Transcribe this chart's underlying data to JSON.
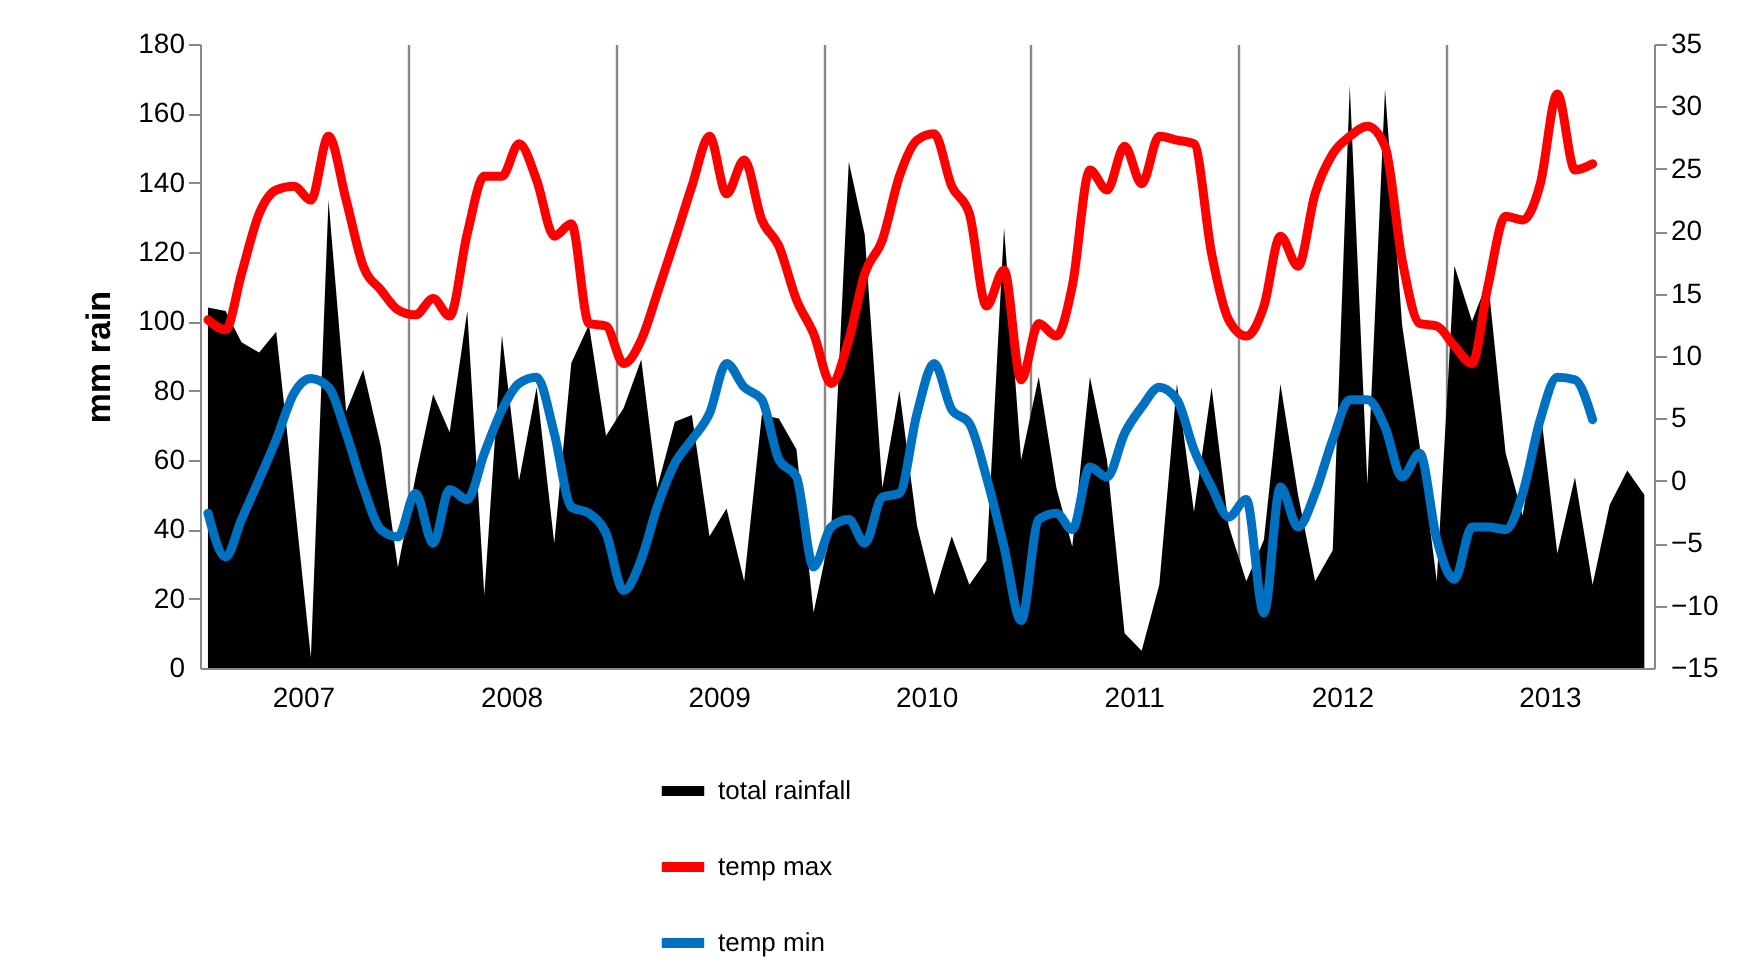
{
  "chart_data": {
    "type": "area",
    "ylabel": "mm rain",
    "legend": "bottom",
    "grid": "x",
    "x": [
      "2007-01-15",
      "2007-02-15",
      "2007-03-15",
      "2007-04-15",
      "2007-05-15",
      "2007-06-15",
      "2007-07-15",
      "2007-08-15",
      "2007-09-15",
      "2007-10-15",
      "2007-11-15",
      "2007-12-15",
      "2008-01-15",
      "2008-02-15",
      "2008-03-15",
      "2008-04-15",
      "2008-05-15",
      "2008-06-15",
      "2008-07-15",
      "2008-08-15",
      "2008-09-15",
      "2008-10-15",
      "2008-11-15",
      "2008-12-15",
      "2009-01-15",
      "2009-02-15",
      "2009-03-15",
      "2009-04-15",
      "2009-05-15",
      "2009-06-15",
      "2009-07-15",
      "2009-08-15",
      "2009-09-15",
      "2009-10-15",
      "2009-11-15",
      "2009-12-15",
      "2010-01-15",
      "2010-02-15",
      "2010-03-15",
      "2010-04-15",
      "2010-05-15",
      "2010-06-15",
      "2010-07-15",
      "2010-08-15",
      "2010-09-15",
      "2010-10-15",
      "2010-11-15",
      "2010-12-15",
      "2011-01-15",
      "2011-02-15",
      "2011-03-15",
      "2011-04-15",
      "2011-05-15",
      "2011-06-15",
      "2011-07-15",
      "2011-08-15",
      "2011-09-15",
      "2011-10-15",
      "2011-11-15",
      "2011-12-15",
      "2012-01-15",
      "2012-02-15",
      "2012-03-15",
      "2012-04-15",
      "2012-05-15",
      "2012-06-15",
      "2012-07-15",
      "2012-08-15",
      "2012-09-15",
      "2012-10-15",
      "2012-11-15",
      "2012-12-15",
      "2013-01-15",
      "2013-02-15",
      "2013-03-15",
      "2013-04-15",
      "2013-05-15",
      "2013-06-15",
      "2013-07-15",
      "2013-08-15",
      "2013-09-15",
      "2013-10-15",
      "2013-11-15",
      "2013-12-15"
    ],
    "xlim": [
      "2007-01-01",
      "2014-01-01"
    ],
    "xticks": [
      {
        "value": "2007-07-01",
        "label": "2007"
      },
      {
        "value": "2008-01-01",
        "label": null
      },
      {
        "value": "2008-07-01",
        "label": "2008"
      },
      {
        "value": "2009-01-01",
        "label": null
      },
      {
        "value": "2009-07-01",
        "label": "2009"
      },
      {
        "value": "2010-01-01",
        "label": null
      },
      {
        "value": "2010-07-01",
        "label": "2010"
      },
      {
        "value": "2011-01-01",
        "label": null
      },
      {
        "value": "2011-07-01",
        "label": "2011"
      },
      {
        "value": "2012-01-01",
        "label": null
      },
      {
        "value": "2012-07-01",
        "label": "2012"
      },
      {
        "value": "2013-01-01",
        "label": null
      },
      {
        "value": "2013-07-01",
        "label": "2013"
      }
    ],
    "ylim": [
      0,
      180
    ],
    "yticks": [
      0,
      20,
      40,
      60,
      80,
      100,
      120,
      140,
      160,
      180
    ],
    "y2lim": [
      -15,
      35
    ],
    "y2ticks": [
      -15,
      -10,
      -5,
      0,
      5,
      10,
      15,
      20,
      25,
      30,
      35
    ],
    "series": [
      {
        "name": "total rainfall",
        "type": "area",
        "color": "#000000",
        "values": [
          104,
          103,
          94,
          91,
          97,
          50,
          3,
          135,
          74,
          86,
          64,
          29,
          55,
          79,
          68,
          103,
          21,
          96,
          54,
          81,
          36,
          88,
          99,
          67,
          75,
          89,
          52,
          71,
          73,
          38,
          46,
          25,
          73,
          72,
          63,
          16,
          40,
          146,
          125,
          52,
          80,
          41,
          21,
          38,
          24,
          31,
          127,
          60,
          84,
          52,
          35,
          84,
          60,
          10,
          5,
          24,
          82,
          45,
          81,
          41,
          25,
          37,
          82,
          50,
          25,
          34,
          168,
          53,
          167,
          99,
          64,
          25,
          116,
          100,
          112,
          62,
          44,
          75,
          33,
          55,
          24,
          47,
          57,
          50
        ]
      },
      {
        "name": "temp max",
        "type": "line",
        "axis": "y2",
        "color": "#ff0000",
        "values": [
          12.9,
          12.1,
          16.6,
          21.4,
          23.3,
          23.6,
          22.5,
          27.6,
          22.5,
          17.2,
          15.3,
          13.7,
          13.3,
          14.6,
          13.2,
          19.8,
          24.4,
          24.4,
          27.0,
          24.1,
          19.6,
          20.6,
          12.6,
          12.4,
          9.4,
          11.3,
          15.0,
          19.3,
          23.6,
          27.6,
          23.0,
          25.7,
          20.9,
          18.8,
          14.5,
          11.8,
          7.8,
          11.3,
          16.6,
          19.3,
          24.4,
          27.3,
          27.8,
          23.6,
          21.4,
          14.0,
          16.9,
          8.1,
          12.6,
          11.6,
          15.6,
          24.9,
          23.3,
          26.8,
          23.8,
          27.6,
          27.3,
          27.0,
          18.2,
          12.9,
          11.6,
          14.0,
          19.6,
          17.2,
          23.0,
          26.2,
          27.6,
          28.4,
          26.8,
          17.7,
          12.6,
          12.4,
          10.8,
          9.4,
          15.6,
          21.2,
          20.9,
          23.8,
          31.0,
          24.9,
          25.4,
          null,
          null,
          null
        ]
      },
      {
        "name": "temp min",
        "type": "line",
        "axis": "y2",
        "color": "#0070c0",
        "values": [
          -2.6,
          -6.1,
          -3.1,
          0.1,
          3.3,
          7.0,
          8.2,
          7.5,
          3.8,
          -0.5,
          -3.9,
          -4.5,
          -1.0,
          -5.0,
          -0.7,
          -1.5,
          2.2,
          5.7,
          7.8,
          8.3,
          3.8,
          -2.1,
          -2.6,
          -4.2,
          -8.8,
          -6.3,
          -2.1,
          1.4,
          3.3,
          5.4,
          9.4,
          7.5,
          6.5,
          1.7,
          0.3,
          -6.9,
          -3.7,
          -3.1,
          -5.0,
          -1.3,
          -1.0,
          5.4,
          9.4,
          5.7,
          4.6,
          0.3,
          -5.3,
          -11.2,
          -3.1,
          -2.6,
          -3.9,
          1.1,
          0.3,
          3.8,
          5.9,
          7.5,
          6.5,
          2.5,
          -0.5,
          -2.9,
          -1.5,
          -10.6,
          -0.5,
          -3.7,
          -1.0,
          3.3,
          6.5,
          6.5,
          4.3,
          0.3,
          2.2,
          -4.7,
          -7.9,
          -3.7,
          -3.7,
          -3.9,
          -1.0,
          4.9,
          8.3,
          8.1,
          4.9,
          null,
          null,
          null
        ]
      }
    ]
  }
}
